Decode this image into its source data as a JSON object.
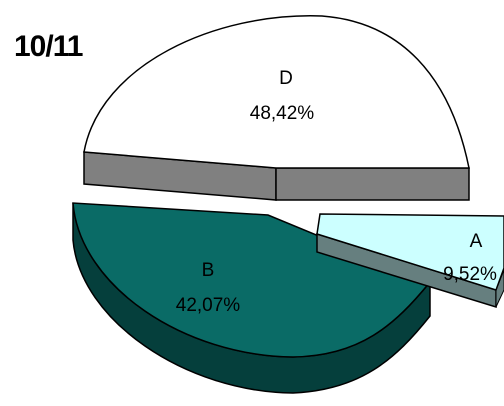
{
  "chart_data": {
    "type": "pie",
    "title": "10/11",
    "categories": [
      "D",
      "B",
      "A"
    ],
    "values": [
      48.42,
      42.07,
      9.52
    ],
    "value_labels": [
      "48,42%",
      "42,07%",
      "9,52%"
    ],
    "colors": {
      "D": "#ffffff",
      "B": "#0a6b66",
      "A": "#ccffff"
    },
    "exploded": true,
    "three_d": true,
    "legend": "none"
  }
}
